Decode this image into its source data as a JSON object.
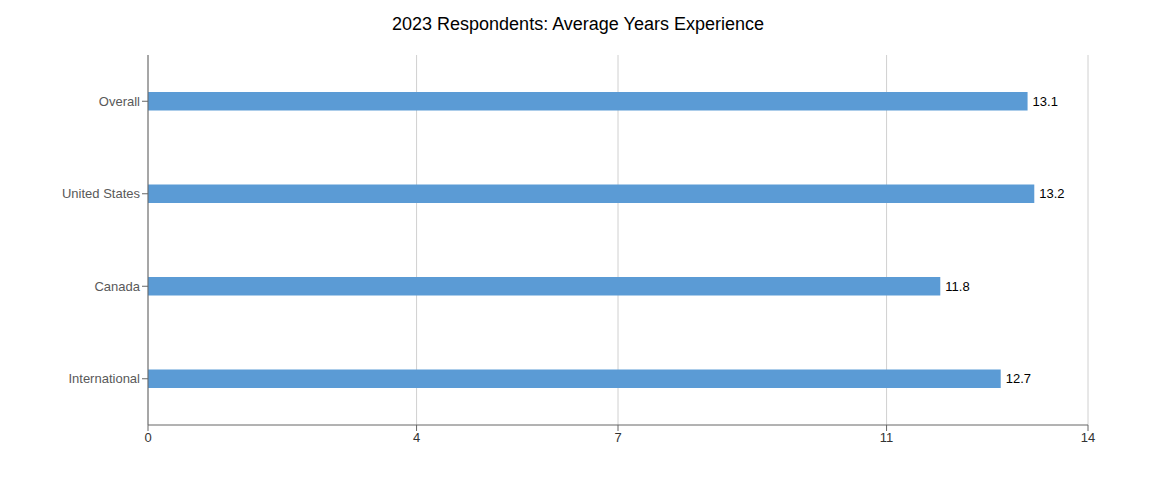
{
  "chart_data": {
    "type": "bar",
    "orientation": "horizontal",
    "title": "2023 Respondents: Average Years Experience",
    "categories": [
      "International",
      "Canada",
      "United States",
      "Overall"
    ],
    "values": [
      12.7,
      11.8,
      13.2,
      13.1
    ],
    "color": "#5b9bd5",
    "xlim": [
      0,
      14
    ],
    "xticks": [
      0,
      4,
      7,
      11,
      14
    ],
    "grid": true,
    "data_labels": true
  }
}
